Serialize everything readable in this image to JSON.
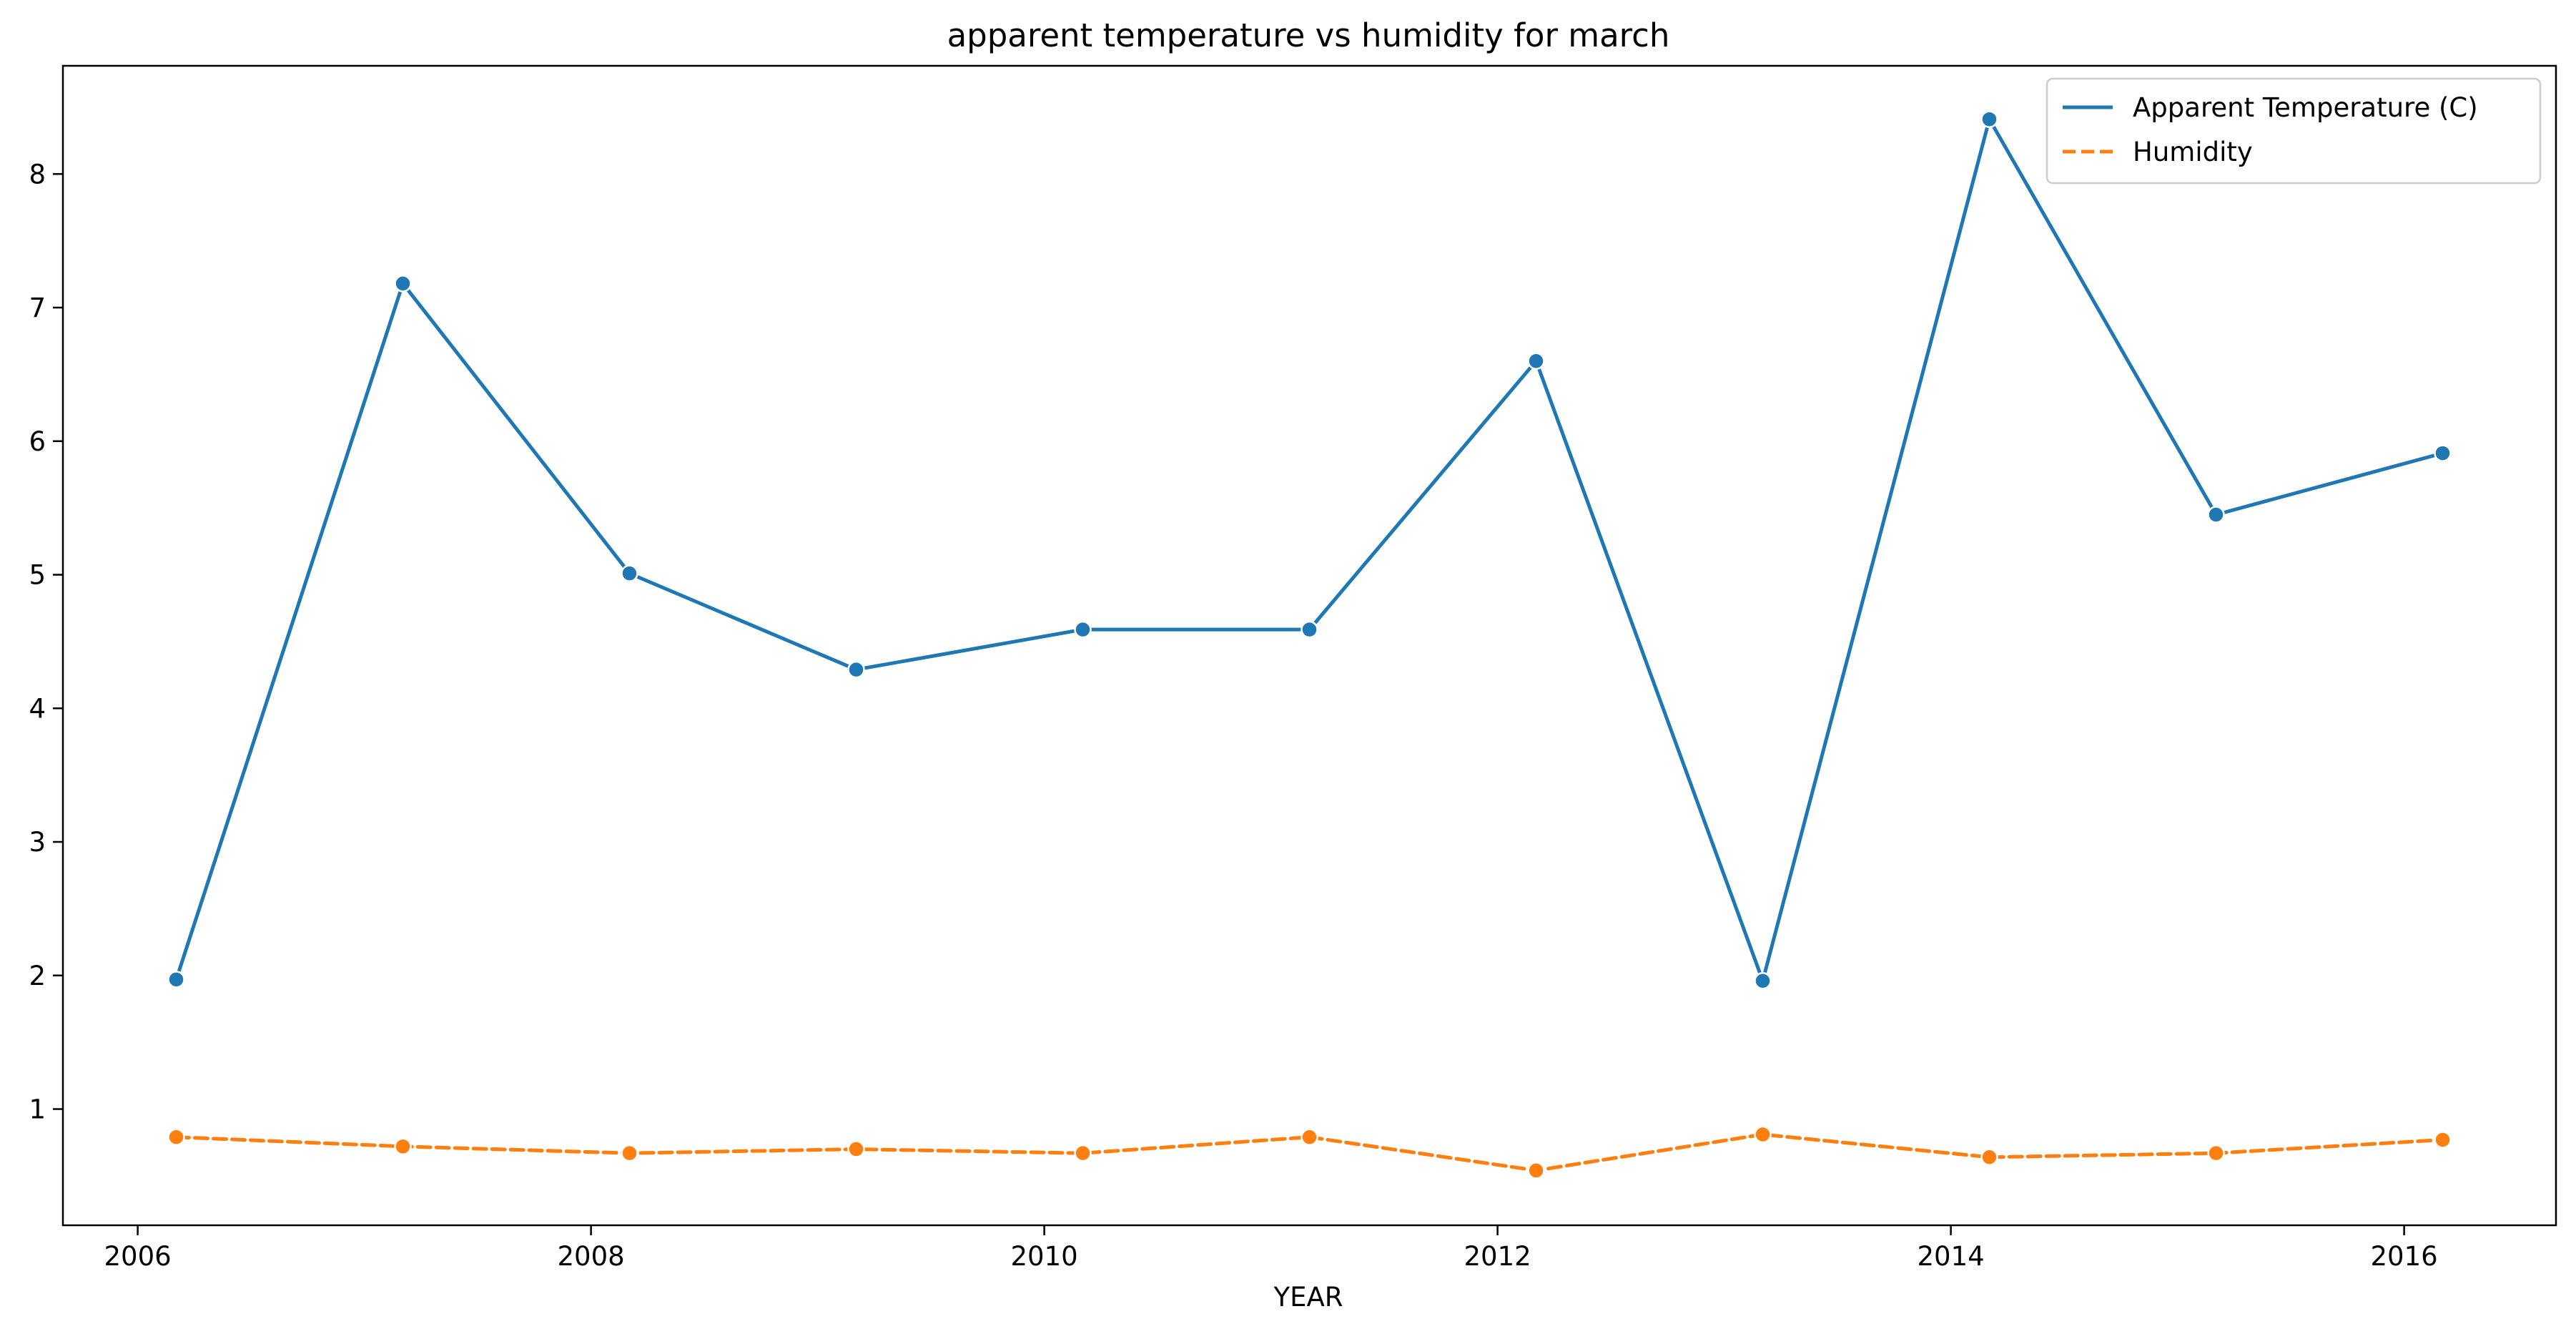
{
  "chart_data": {
    "type": "line",
    "title": "apparent temperature vs humidity for march",
    "xlabel": "YEAR",
    "ylabel": "",
    "x": [
      2006.17,
      2007.17,
      2008.17,
      2009.17,
      2010.17,
      2011.17,
      2012.17,
      2013.17,
      2014.17,
      2015.17,
      2016.17
    ],
    "xlim": [
      2005.67,
      2016.67
    ],
    "ylim": [
      0.13,
      8.81
    ],
    "xticks": [
      2006,
      2008,
      2010,
      2012,
      2014,
      2016
    ],
    "yticks": [
      1,
      2,
      3,
      4,
      5,
      6,
      7,
      8
    ],
    "grid": false,
    "legend_position": "top-right",
    "series": [
      {
        "name": "Apparent Temperature (C)",
        "color": "#1f77b4",
        "line_style": "solid",
        "marker": "circle",
        "values": [
          1.97,
          7.18,
          5.01,
          4.29,
          4.59,
          4.59,
          6.6,
          1.96,
          8.41,
          5.45,
          5.91
        ]
      },
      {
        "name": "Humidity",
        "color": "#ff7f0e",
        "line_style": "dashed",
        "marker": "circle",
        "values": [
          0.79,
          0.72,
          0.67,
          0.7,
          0.67,
          0.79,
          0.54,
          0.81,
          0.64,
          0.67,
          0.77
        ]
      }
    ]
  }
}
